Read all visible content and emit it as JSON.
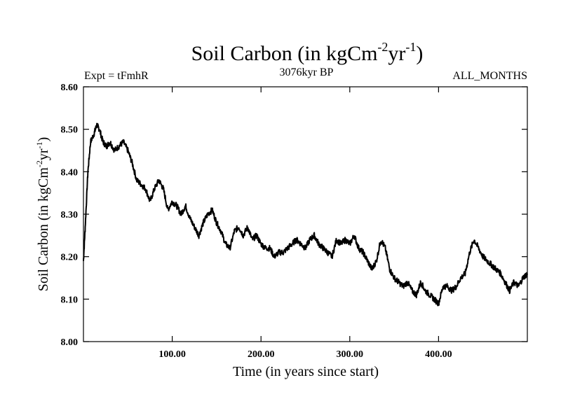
{
  "chart_data": {
    "type": "line",
    "title": {
      "prefix": "Soil Carbon (in kgCm",
      "sup1": "-2",
      "mid": "yr",
      "sup2": "-1",
      "suffix": ")"
    },
    "subtitle_left": "Expt = tFmhR",
    "subtitle_center": "3076kyr BP",
    "subtitle_right": "ALL_MONTHS",
    "xlabel": "Time (in years since start)",
    "ylabel": {
      "prefix": "Soil Carbon (in kgCm",
      "sup1": "-2",
      "mid": "yr",
      "sup2": "-1",
      "suffix": ")"
    },
    "xlim": [
      0,
      500
    ],
    "ylim": [
      8.0,
      8.6
    ],
    "x_ticks": [
      100,
      200,
      300,
      400
    ],
    "x_tick_labels": [
      "100.00",
      "200.00",
      "300.00",
      "400.00"
    ],
    "y_ticks": [
      8.0,
      8.1,
      8.2,
      8.3,
      8.4,
      8.5,
      8.6
    ],
    "y_tick_labels": [
      "8.00",
      "8.10",
      "8.20",
      "8.30",
      "8.40",
      "8.50",
      "8.60"
    ],
    "grid": false,
    "line_color": "#000000",
    "series": [
      {
        "name": "Soil Carbon",
        "x": [
          0,
          2,
          5,
          8,
          12,
          15,
          18,
          22,
          26,
          30,
          35,
          40,
          45,
          50,
          55,
          60,
          65,
          70,
          75,
          80,
          85,
          90,
          95,
          100,
          105,
          110,
          115,
          120,
          125,
          130,
          135,
          140,
          145,
          150,
          155,
          160,
          165,
          170,
          175,
          180,
          185,
          190,
          195,
          200,
          205,
          210,
          215,
          220,
          225,
          230,
          235,
          240,
          245,
          250,
          255,
          260,
          265,
          270,
          275,
          280,
          285,
          290,
          295,
          300,
          305,
          310,
          315,
          320,
          325,
          330,
          335,
          340,
          345,
          350,
          355,
          360,
          365,
          370,
          375,
          380,
          385,
          390,
          395,
          400,
          405,
          410,
          415,
          420,
          425,
          430,
          435,
          440,
          445,
          450,
          455,
          460,
          465,
          470,
          475,
          480,
          485,
          490,
          495,
          500
        ],
        "values": [
          8.19,
          8.27,
          8.4,
          8.47,
          8.49,
          8.51,
          8.5,
          8.47,
          8.46,
          8.47,
          8.45,
          8.46,
          8.47,
          8.45,
          8.42,
          8.38,
          8.37,
          8.36,
          8.33,
          8.36,
          8.38,
          8.36,
          8.31,
          8.33,
          8.32,
          8.3,
          8.32,
          8.29,
          8.27,
          8.25,
          8.28,
          8.3,
          8.31,
          8.28,
          8.26,
          8.23,
          8.22,
          8.26,
          8.27,
          8.25,
          8.27,
          8.24,
          8.25,
          8.23,
          8.22,
          8.22,
          8.2,
          8.21,
          8.21,
          8.22,
          8.23,
          8.24,
          8.23,
          8.22,
          8.24,
          8.25,
          8.23,
          8.22,
          8.21,
          8.2,
          8.24,
          8.23,
          8.24,
          8.23,
          8.25,
          8.22,
          8.21,
          8.19,
          8.17,
          8.19,
          8.24,
          8.22,
          8.17,
          8.15,
          8.14,
          8.13,
          8.14,
          8.12,
          8.11,
          8.14,
          8.12,
          8.11,
          8.1,
          8.09,
          8.13,
          8.13,
          8.12,
          8.13,
          8.15,
          8.16,
          8.21,
          8.24,
          8.22,
          8.2,
          8.19,
          8.18,
          8.17,
          8.16,
          8.14,
          8.12,
          8.14,
          8.13,
          8.15,
          8.16
        ]
      }
    ]
  }
}
